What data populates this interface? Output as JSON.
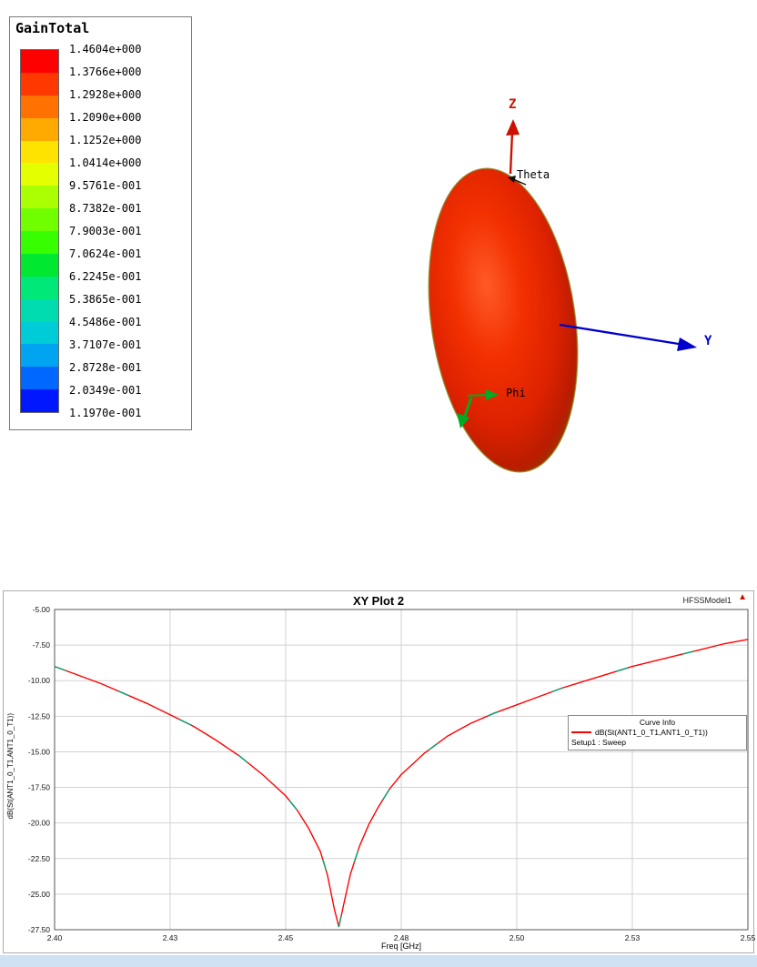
{
  "gain_legend": {
    "title": "GainTotal",
    "values": [
      "1.4604e+000",
      "1.3766e+000",
      "1.2928e+000",
      "1.2090e+000",
      "1.1252e+000",
      "1.0414e+000",
      "9.5761e-001",
      "8.7382e-001",
      "7.9003e-001",
      "7.0624e-001",
      "6.2245e-001",
      "5.3865e-001",
      "4.5486e-001",
      "3.7107e-001",
      "2.8728e-001",
      "2.0349e-001",
      "1.1970e-001"
    ],
    "band_colors": [
      "#ff0000",
      "#ff3800",
      "#ff7100",
      "#ffaa00",
      "#ffe300",
      "#e3ff00",
      "#aaff00",
      "#71ff00",
      "#38ff00",
      "#00e830",
      "#00e878",
      "#00dcb0",
      "#00ccd8",
      "#00a4f0",
      "#0068ff",
      "#0018ff"
    ]
  },
  "pattern3d": {
    "z_axis_label": "Z",
    "y_axis_label": "Y",
    "theta_label": "Theta",
    "phi_label": "Phi",
    "colors": {
      "z_axis": "#cc1100",
      "y_axis": "#0000cc",
      "phi_axis": "#00aa22",
      "lobe_center": "#ff5a28",
      "lobe_edge": "#8f3c00"
    }
  },
  "chart_data": {
    "type": "line",
    "title": "XY Plot 2",
    "model_label": "HFSSModel1",
    "xlabel": "Freq [GHz]",
    "ylabel": "dB(St(ANT1_0_T1,ANT1_0_T1))",
    "xlim": [
      2.4,
      2.55
    ],
    "ylim": [
      -27.5,
      -5.0
    ],
    "grid": true,
    "legend_position": "right",
    "x_ticks": [
      [
        2.4,
        "2.40"
      ],
      [
        2.425,
        "2.43"
      ],
      [
        2.45,
        "2.45"
      ],
      [
        2.475,
        "2.48"
      ],
      [
        2.5,
        "2.50"
      ],
      [
        2.525,
        "2.53"
      ],
      [
        2.55,
        "2.55"
      ]
    ],
    "y_ticks": [
      [
        -5,
        "-5.00"
      ],
      [
        -7.5,
        "-7.50"
      ],
      [
        -10,
        "-10.00"
      ],
      [
        -12.5,
        "-12.50"
      ],
      [
        -15,
        "-15.00"
      ],
      [
        -17.5,
        "-17.50"
      ],
      [
        -20,
        "-20.00"
      ],
      [
        -22.5,
        "-22.50"
      ],
      [
        -25,
        "-25.00"
      ],
      [
        -27.5,
        "-27.50"
      ]
    ],
    "legend": {
      "header": "Curve Info",
      "series_label": "dB(St(ANT1_0_T1,ANT1_0_T1))",
      "series_color": "#ff0000",
      "sweep_label": "Setup1 : Sweep"
    },
    "series": [
      {
        "name": "dB(St(ANT1_0_T1,ANT1_0_T1))",
        "color": "#ff0000",
        "points": [
          [
            2.4,
            -9.0
          ],
          [
            2.405,
            -9.6
          ],
          [
            2.41,
            -10.2
          ],
          [
            2.415,
            -10.9
          ],
          [
            2.42,
            -11.6
          ],
          [
            2.425,
            -12.4
          ],
          [
            2.43,
            -13.2
          ],
          [
            2.435,
            -14.2
          ],
          [
            2.44,
            -15.3
          ],
          [
            2.445,
            -16.6
          ],
          [
            2.45,
            -18.1
          ],
          [
            2.4525,
            -19.1
          ],
          [
            2.455,
            -20.4
          ],
          [
            2.4575,
            -22.0
          ],
          [
            2.459,
            -23.6
          ],
          [
            2.4605,
            -26.0
          ],
          [
            2.4615,
            -27.3
          ],
          [
            2.4625,
            -25.8
          ],
          [
            2.464,
            -23.6
          ],
          [
            2.466,
            -21.6
          ],
          [
            2.468,
            -20.1
          ],
          [
            2.47,
            -18.9
          ],
          [
            2.4725,
            -17.6
          ],
          [
            2.475,
            -16.6
          ],
          [
            2.48,
            -15.1
          ],
          [
            2.485,
            -13.9
          ],
          [
            2.49,
            -13.0
          ],
          [
            2.495,
            -12.3
          ],
          [
            2.5,
            -11.7
          ],
          [
            2.505,
            -11.1
          ],
          [
            2.51,
            -10.5
          ],
          [
            2.515,
            -10.0
          ],
          [
            2.52,
            -9.5
          ],
          [
            2.525,
            -9.0
          ],
          [
            2.53,
            -8.6
          ],
          [
            2.535,
            -8.2
          ],
          [
            2.54,
            -7.8
          ],
          [
            2.545,
            -7.4
          ],
          [
            2.55,
            -7.1
          ]
        ]
      }
    ]
  }
}
